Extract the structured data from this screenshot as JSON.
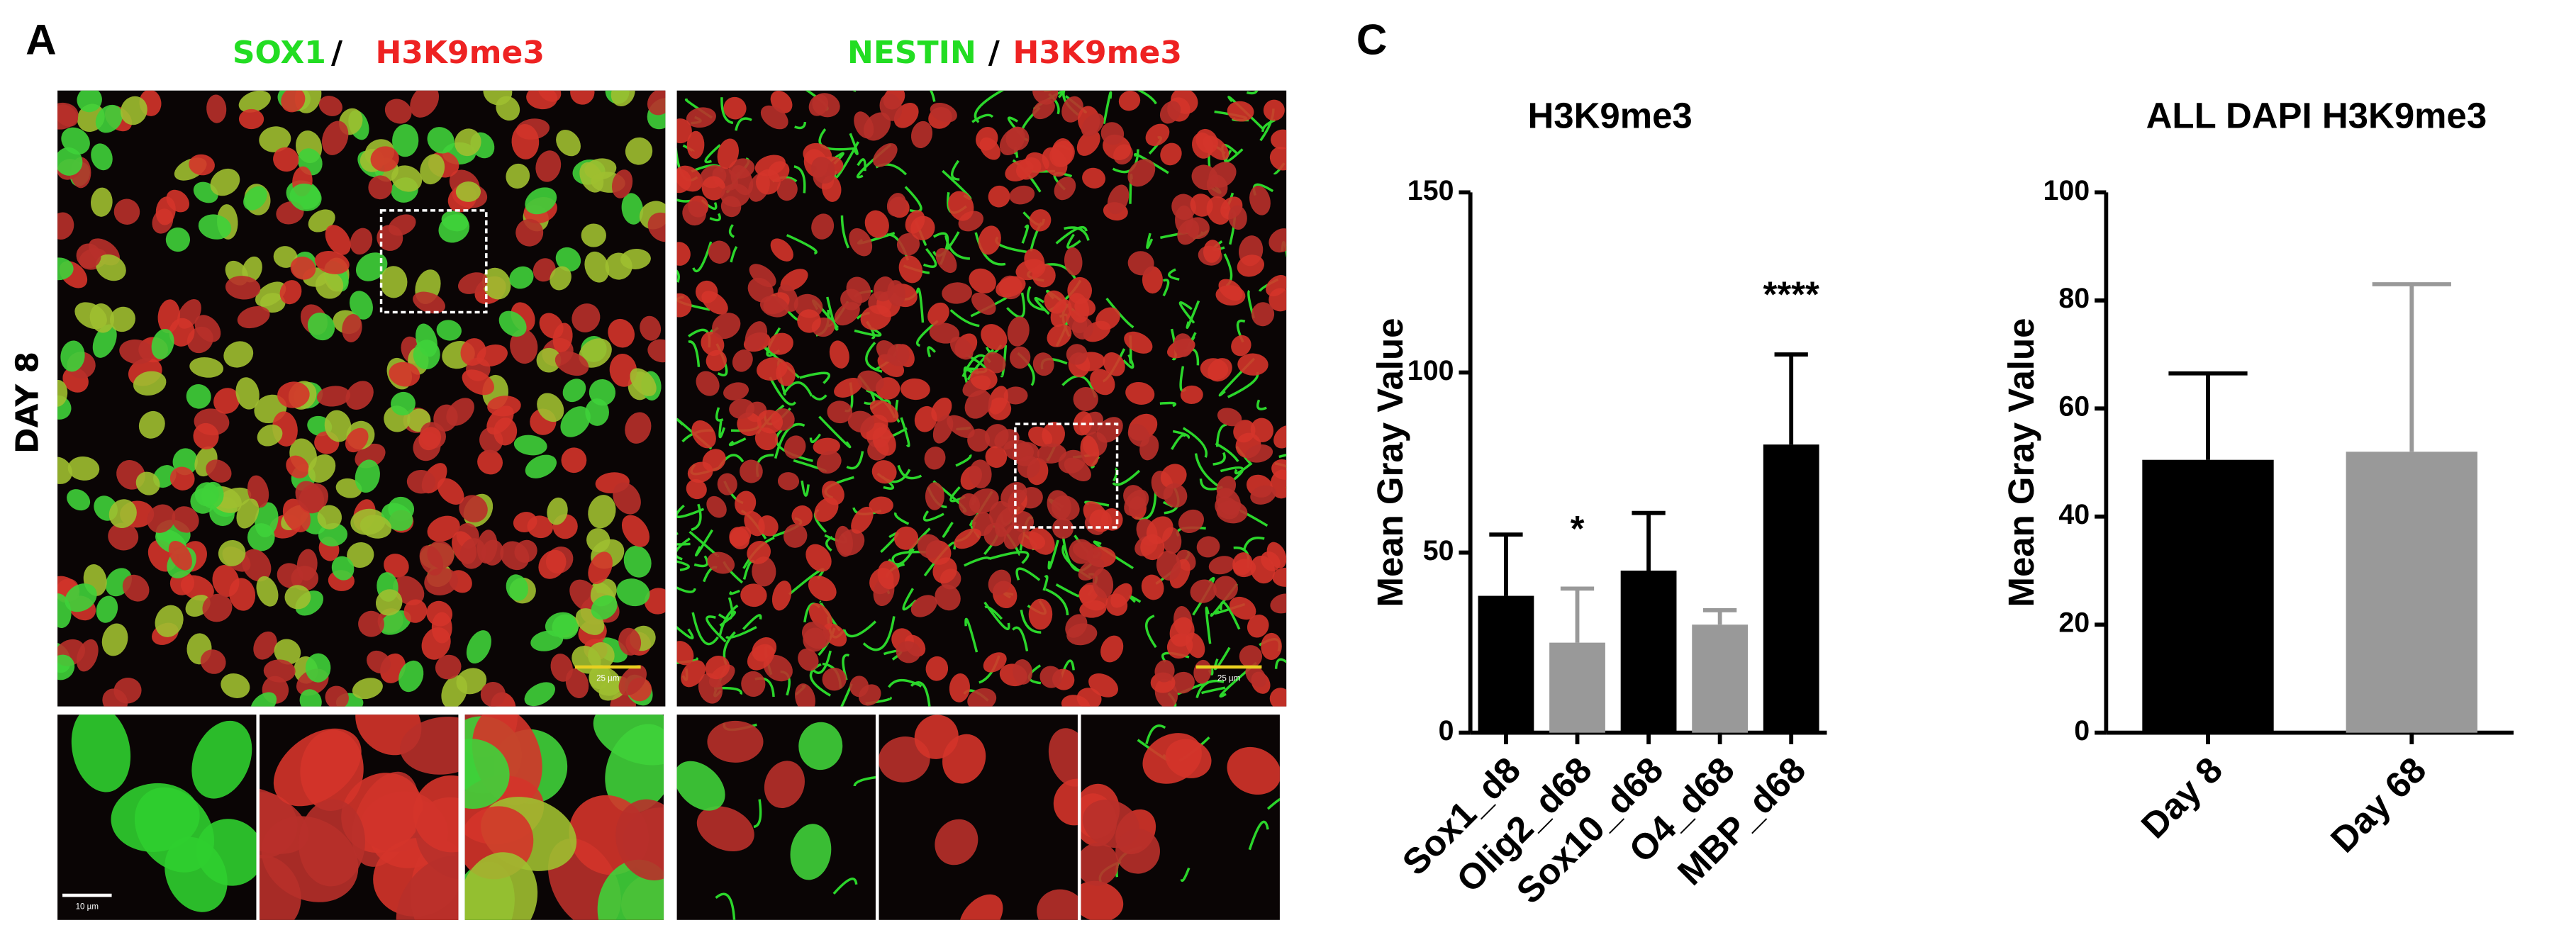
{
  "panels": {
    "a": "A",
    "c": "C"
  },
  "images": {
    "left_title": [
      "SOX1",
      "/",
      "H3K9me3"
    ],
    "right_title": [
      "NESTIN",
      "/",
      "H3K9me3"
    ],
    "row_label": "DAY 8",
    "scale_big": "25 µm",
    "scale_small": "10 µm"
  },
  "chart_data": [
    {
      "type": "bar",
      "title": "H3K9me3",
      "y_label": "Mean Gray Value",
      "categories": [
        "Sox1_d8",
        "Olig2_d68",
        "Sox10_d68",
        "O4_d68",
        "MBP_d68"
      ],
      "values": [
        38,
        25,
        45,
        30,
        80
      ],
      "errors": [
        17,
        15,
        16,
        4,
        25
      ],
      "colors": [
        "#000000",
        "#999999",
        "#000000",
        "#999999",
        "#000000"
      ],
      "annotations": [
        {
          "category": 1,
          "text": "*"
        },
        {
          "category": 4,
          "text": "****"
        }
      ],
      "ylim": [
        0,
        150
      ],
      "yticks": [
        0,
        50,
        100,
        150
      ]
    },
    {
      "type": "bar",
      "title": "ALL DAPI H3K9me3",
      "y_label": "Mean Gray Value",
      "categories": [
        "Day 8",
        "Day 68"
      ],
      "values": [
        50.5,
        52
      ],
      "errors": [
        16,
        31
      ],
      "colors": [
        "#000000",
        "#999999"
      ],
      "annotations": [],
      "ylim": [
        0,
        100
      ],
      "yticks": [
        0,
        20,
        40,
        60,
        80,
        100
      ]
    }
  ]
}
